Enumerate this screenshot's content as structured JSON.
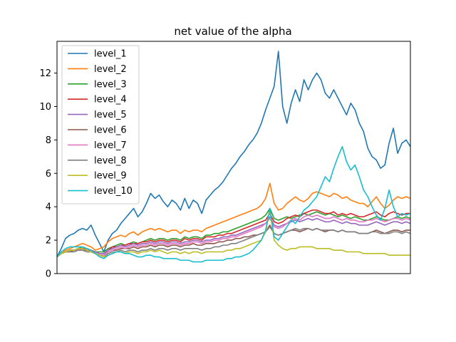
{
  "chart_data": {
    "type": "line",
    "title": "net value of the alpha",
    "xlabel": "",
    "ylabel": "",
    "x": [
      0,
      6,
      12,
      18,
      24,
      30,
      36,
      42,
      48,
      54,
      60,
      66,
      72,
      78,
      84,
      90,
      96,
      102,
      108,
      114,
      120,
      126,
      132,
      138,
      144,
      150,
      156,
      162,
      168,
      174,
      180,
      186,
      192,
      198,
      204,
      210,
      216,
      222,
      228,
      234,
      240,
      246,
      252,
      258,
      264,
      270,
      276,
      282,
      288,
      294,
      300,
      306,
      312,
      318,
      324,
      330,
      336,
      342,
      348,
      354,
      360,
      366,
      372,
      378,
      384,
      390,
      396,
      402,
      408,
      414,
      420,
      426,
      432,
      438,
      444,
      450,
      456,
      462,
      468,
      474,
      480,
      486,
      492,
      498
    ],
    "xlim": [
      0,
      498
    ],
    "ylim": [
      0,
      13.9
    ],
    "yticks": [
      0,
      2,
      4,
      6,
      8,
      10,
      12
    ],
    "ytick_labels": [
      "0",
      "2",
      "4",
      "6",
      "8",
      "10",
      "12"
    ],
    "grid": false,
    "legend_position": "top-left",
    "series": [
      {
        "name": "level_1",
        "color": "#1f77b4",
        "values": [
          1.0,
          1.5,
          2.1,
          2.3,
          2.4,
          2.6,
          2.7,
          2.6,
          2.9,
          2.3,
          1.8,
          1.3,
          2.0,
          2.4,
          2.6,
          3.0,
          3.3,
          3.6,
          3.9,
          3.4,
          3.7,
          4.2,
          4.8,
          4.5,
          4.7,
          4.3,
          4.0,
          4.4,
          4.2,
          3.8,
          4.5,
          3.9,
          4.4,
          4.2,
          3.6,
          4.4,
          4.7,
          5.0,
          5.2,
          5.5,
          5.9,
          6.3,
          6.6,
          7.0,
          7.3,
          7.7,
          8.0,
          8.4,
          9.0,
          9.8,
          10.5,
          11.2,
          13.3,
          10.0,
          9.0,
          10.2,
          11.0,
          10.3,
          11.6,
          11.0,
          11.6,
          12.0,
          11.6,
          10.8,
          10.5,
          11.0,
          10.5,
          10.0,
          9.5,
          10.2,
          9.8,
          9.0,
          8.5,
          7.5,
          7.0,
          6.8,
          6.3,
          6.5,
          7.8,
          8.7,
          7.2,
          7.8,
          8.0,
          7.6
        ]
      },
      {
        "name": "level_2",
        "color": "#ff7f0e",
        "values": [
          1.0,
          1.2,
          1.4,
          1.5,
          1.6,
          1.7,
          1.8,
          1.7,
          1.6,
          1.4,
          1.5,
          1.6,
          1.9,
          2.1,
          2.2,
          2.3,
          2.2,
          2.4,
          2.5,
          2.3,
          2.5,
          2.6,
          2.7,
          2.6,
          2.7,
          2.6,
          2.5,
          2.6,
          2.6,
          2.4,
          2.6,
          2.5,
          2.6,
          2.6,
          2.5,
          2.7,
          2.8,
          2.9,
          3.0,
          3.1,
          3.2,
          3.3,
          3.4,
          3.5,
          3.6,
          3.7,
          3.8,
          3.9,
          4.1,
          4.5,
          5.4,
          4.2,
          3.8,
          3.9,
          4.2,
          4.4,
          4.6,
          4.4,
          4.3,
          4.5,
          4.8,
          4.9,
          4.8,
          4.7,
          4.6,
          4.8,
          4.7,
          4.5,
          4.6,
          4.4,
          4.3,
          4.2,
          4.2,
          4.0,
          4.3,
          4.6,
          4.2,
          3.9,
          4.1,
          4.4,
          4.6,
          4.5,
          4.6,
          4.5
        ]
      },
      {
        "name": "level_3",
        "color": "#2ca02c",
        "values": [
          1.0,
          1.2,
          1.3,
          1.4,
          1.4,
          1.5,
          1.6,
          1.5,
          1.4,
          1.3,
          1.3,
          1.3,
          1.5,
          1.6,
          1.7,
          1.8,
          1.7,
          1.8,
          1.9,
          1.8,
          1.9,
          2.0,
          2.1,
          2.0,
          2.1,
          2.1,
          2.0,
          2.1,
          2.1,
          2.0,
          2.2,
          2.1,
          2.2,
          2.2,
          2.1,
          2.3,
          2.3,
          2.4,
          2.4,
          2.5,
          2.5,
          2.6,
          2.7,
          2.8,
          2.9,
          3.0,
          3.1,
          3.2,
          3.3,
          3.5,
          3.9,
          3.3,
          3.2,
          3.3,
          3.4,
          3.3,
          3.4,
          3.5,
          3.6,
          3.5,
          3.6,
          3.7,
          3.6,
          3.5,
          3.6,
          3.5,
          3.4,
          3.5,
          3.4,
          3.3,
          3.4,
          3.3,
          3.2,
          3.2,
          3.3,
          3.4,
          3.3,
          3.2,
          3.2,
          3.3,
          3.4,
          3.3,
          3.4,
          3.3
        ]
      },
      {
        "name": "level_4",
        "color": "#d62728",
        "values": [
          1.0,
          1.2,
          1.3,
          1.4,
          1.4,
          1.5,
          1.5,
          1.5,
          1.4,
          1.3,
          1.2,
          1.2,
          1.4,
          1.6,
          1.6,
          1.7,
          1.7,
          1.8,
          1.8,
          1.8,
          1.9,
          1.9,
          2.0,
          1.9,
          2.0,
          2.0,
          1.9,
          2.0,
          2.0,
          1.9,
          2.1,
          2.0,
          2.1,
          2.1,
          2.0,
          2.2,
          2.2,
          2.2,
          2.3,
          2.3,
          2.4,
          2.4,
          2.5,
          2.6,
          2.7,
          2.8,
          2.9,
          3.0,
          3.1,
          3.2,
          3.6,
          3.1,
          3.0,
          3.1,
          3.3,
          3.4,
          3.5,
          3.4,
          3.6,
          3.7,
          3.8,
          3.8,
          3.7,
          3.6,
          3.6,
          3.7,
          3.5,
          3.6,
          3.5,
          3.6,
          3.5,
          3.4,
          3.4,
          3.5,
          3.6,
          3.7,
          3.5,
          3.4,
          3.6,
          3.7,
          3.6,
          3.5,
          3.6,
          3.6
        ]
      },
      {
        "name": "level_5",
        "color": "#9467bd",
        "values": [
          1.0,
          1.2,
          1.3,
          1.4,
          1.4,
          1.5,
          1.5,
          1.4,
          1.4,
          1.3,
          1.2,
          1.2,
          1.4,
          1.5,
          1.6,
          1.7,
          1.6,
          1.7,
          1.8,
          1.7,
          1.8,
          1.8,
          1.9,
          1.8,
          1.9,
          1.9,
          1.8,
          1.9,
          1.9,
          1.8,
          1.9,
          1.9,
          2.0,
          2.0,
          1.9,
          2.0,
          2.0,
          2.1,
          2.1,
          2.2,
          2.2,
          2.3,
          2.3,
          2.4,
          2.5,
          2.6,
          2.7,
          2.8,
          2.9,
          3.0,
          3.4,
          2.9,
          2.8,
          2.9,
          3.0,
          3.1,
          3.2,
          3.1,
          3.2,
          3.3,
          3.2,
          3.3,
          3.2,
          3.1,
          3.1,
          3.2,
          3.1,
          3.0,
          3.1,
          3.0,
          3.0,
          2.9,
          2.9,
          2.9,
          3.0,
          3.1,
          3.0,
          2.9,
          3.0,
          3.1,
          3.1,
          3.0,
          3.1,
          3.0
        ]
      },
      {
        "name": "level_6",
        "color": "#8c564b",
        "values": [
          1.0,
          1.2,
          1.3,
          1.3,
          1.4,
          1.4,
          1.4,
          1.4,
          1.3,
          1.2,
          1.1,
          1.1,
          1.3,
          1.4,
          1.4,
          1.5,
          1.5,
          1.5,
          1.6,
          1.5,
          1.6,
          1.6,
          1.7,
          1.6,
          1.7,
          1.7,
          1.6,
          1.7,
          1.7,
          1.6,
          1.7,
          1.7,
          1.8,
          1.7,
          1.7,
          1.8,
          1.8,
          1.8,
          1.9,
          1.9,
          2.0,
          2.0,
          2.1,
          2.1,
          2.2,
          2.2,
          2.3,
          2.3,
          2.4,
          2.5,
          2.9,
          2.4,
          2.3,
          2.4,
          2.5,
          2.6,
          2.6,
          2.5,
          2.6,
          2.7,
          2.6,
          2.7,
          2.6,
          2.5,
          2.6,
          2.6,
          2.5,
          2.6,
          2.5,
          2.5,
          2.5,
          2.4,
          2.4,
          2.4,
          2.5,
          2.6,
          2.5,
          2.4,
          2.5,
          2.6,
          2.6,
          2.5,
          2.6,
          2.6
        ]
      },
      {
        "name": "level_7",
        "color": "#e377c2",
        "values": [
          1.0,
          1.2,
          1.3,
          1.4,
          1.4,
          1.4,
          1.5,
          1.4,
          1.3,
          1.2,
          1.1,
          1.1,
          1.3,
          1.4,
          1.5,
          1.6,
          1.5,
          1.6,
          1.7,
          1.6,
          1.7,
          1.7,
          1.8,
          1.7,
          1.8,
          1.8,
          1.7,
          1.8,
          1.8,
          1.7,
          1.8,
          1.8,
          1.9,
          1.9,
          1.8,
          1.9,
          1.9,
          2.0,
          2.0,
          2.1,
          2.1,
          2.2,
          2.2,
          2.3,
          2.4,
          2.5,
          2.6,
          2.7,
          2.8,
          3.0,
          3.3,
          2.8,
          2.7,
          2.8,
          3.0,
          3.2,
          3.3,
          3.2,
          3.4,
          3.5,
          3.4,
          3.5,
          3.4,
          3.3,
          3.3,
          3.4,
          3.3,
          3.2,
          3.3,
          3.2,
          3.2,
          3.1,
          3.1,
          3.2,
          3.2,
          3.3,
          3.2,
          3.1,
          3.2,
          3.3,
          3.3,
          3.2,
          3.3,
          3.2
        ]
      },
      {
        "name": "level_8",
        "color": "#7f7f7f",
        "values": [
          1.0,
          1.2,
          1.3,
          1.3,
          1.3,
          1.4,
          1.4,
          1.3,
          1.3,
          1.2,
          1.1,
          1.0,
          1.2,
          1.3,
          1.3,
          1.4,
          1.3,
          1.4,
          1.4,
          1.3,
          1.4,
          1.4,
          1.5,
          1.4,
          1.5,
          1.5,
          1.4,
          1.5,
          1.5,
          1.4,
          1.5,
          1.5,
          1.5,
          1.5,
          1.4,
          1.5,
          1.5,
          1.6,
          1.6,
          1.7,
          1.7,
          1.8,
          1.8,
          1.9,
          2.0,
          2.1,
          2.2,
          2.3,
          2.4,
          2.5,
          2.8,
          2.4,
          2.3,
          2.4,
          2.5,
          2.6,
          2.7,
          2.6,
          2.7,
          2.7,
          2.6,
          2.7,
          2.6,
          2.6,
          2.6,
          2.6,
          2.5,
          2.6,
          2.5,
          2.5,
          2.5,
          2.4,
          2.4,
          2.4,
          2.5,
          2.5,
          2.4,
          2.4,
          2.4,
          2.5,
          2.5,
          2.4,
          2.5,
          2.4
        ]
      },
      {
        "name": "level_9",
        "color": "#bcbd22",
        "values": [
          1.0,
          1.2,
          1.3,
          1.4,
          1.4,
          1.5,
          1.5,
          1.4,
          1.3,
          1.2,
          1.1,
          1.0,
          1.1,
          1.2,
          1.3,
          1.3,
          1.2,
          1.3,
          1.3,
          1.2,
          1.3,
          1.3,
          1.4,
          1.3,
          1.4,
          1.3,
          1.2,
          1.3,
          1.3,
          1.2,
          1.3,
          1.2,
          1.3,
          1.3,
          1.2,
          1.3,
          1.3,
          1.3,
          1.3,
          1.3,
          1.4,
          1.4,
          1.5,
          1.5,
          1.6,
          1.7,
          1.8,
          1.9,
          2.0,
          2.5,
          3.8,
          2.0,
          1.7,
          1.5,
          1.4,
          1.5,
          1.5,
          1.6,
          1.6,
          1.6,
          1.6,
          1.5,
          1.5,
          1.5,
          1.5,
          1.4,
          1.4,
          1.4,
          1.3,
          1.3,
          1.3,
          1.3,
          1.2,
          1.2,
          1.2,
          1.2,
          1.2,
          1.2,
          1.1,
          1.1,
          1.1,
          1.1,
          1.1,
          1.1
        ]
      },
      {
        "name": "level_10",
        "color": "#17becf",
        "values": [
          1.0,
          1.3,
          1.5,
          1.6,
          1.6,
          1.6,
          1.6,
          1.5,
          1.4,
          1.2,
          1.0,
          0.9,
          1.1,
          1.2,
          1.3,
          1.3,
          1.2,
          1.2,
          1.1,
          1.0,
          1.0,
          1.1,
          1.1,
          1.0,
          1.0,
          0.9,
          0.9,
          0.9,
          0.9,
          0.8,
          0.8,
          0.8,
          0.7,
          0.7,
          0.7,
          0.8,
          0.8,
          0.8,
          0.8,
          0.8,
          0.9,
          0.9,
          1.0,
          1.0,
          1.1,
          1.2,
          1.4,
          1.7,
          2.0,
          2.6,
          3.9,
          2.2,
          2.0,
          2.4,
          2.8,
          3.2,
          3.0,
          3.4,
          3.8,
          4.0,
          4.3,
          4.6,
          5.2,
          5.8,
          5.5,
          6.3,
          7.0,
          7.6,
          6.7,
          6.2,
          6.5,
          5.8,
          5.0,
          4.6,
          4.0,
          3.5,
          3.2,
          3.9,
          5.0,
          4.0,
          3.4,
          3.6,
          3.5,
          3.6
        ]
      }
    ]
  }
}
